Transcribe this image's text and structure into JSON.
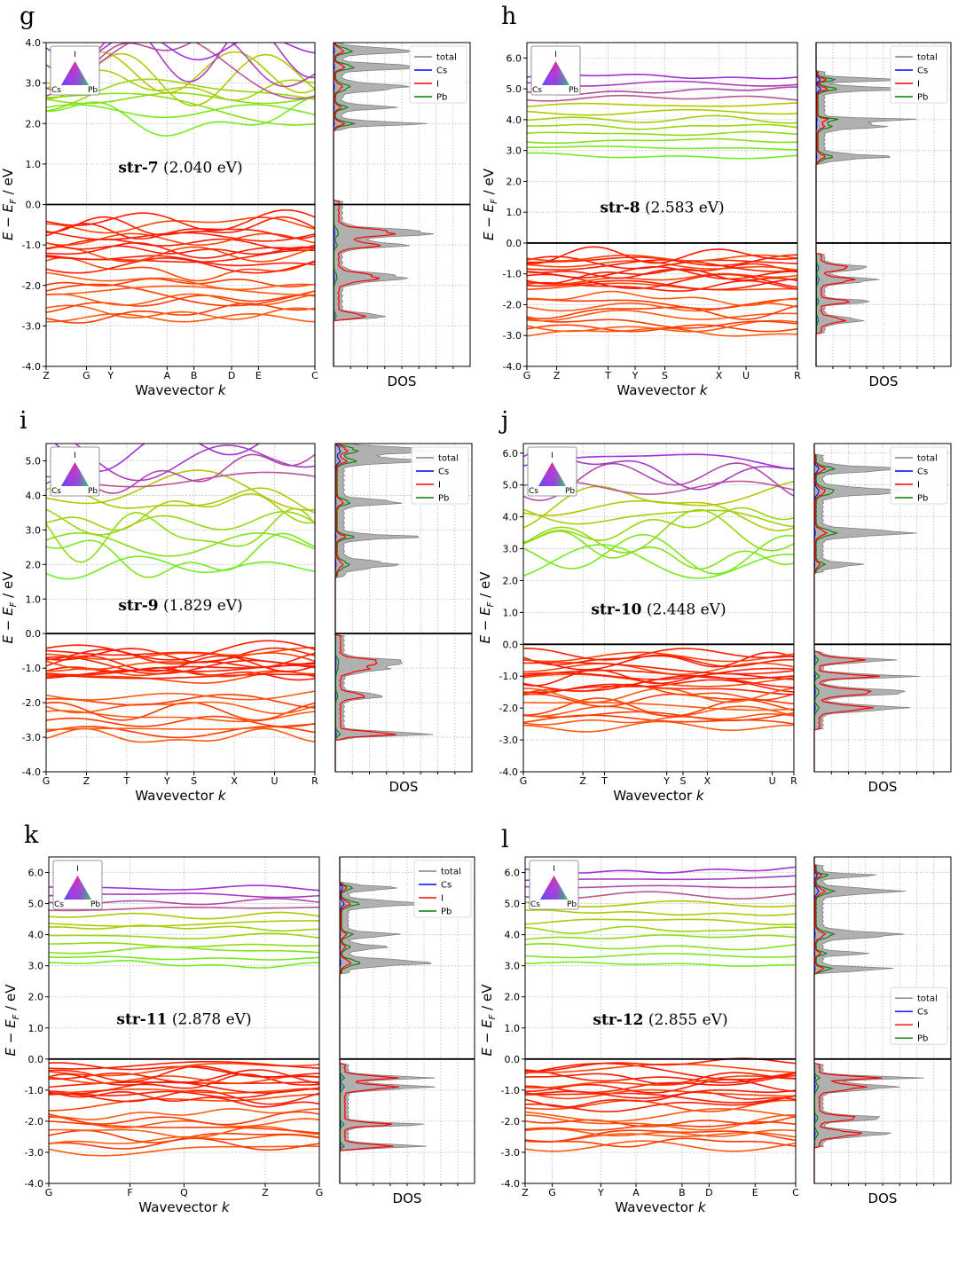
{
  "figure": {
    "colors": {
      "total": "#808080",
      "Cs": "#0000ff",
      "I": "#ff0000",
      "Pb": "#008000",
      "dos_fill": "#b0b0b0",
      "grid": "#b8b8b8"
    },
    "legend_labels": [
      "total",
      "Cs",
      "I",
      "Pb"
    ],
    "triangle_labels": {
      "top": "I",
      "left": "Cs",
      "right": "Pb"
    },
    "xlabel": "Wavevector k",
    "ylabel": "E − E_F / eV",
    "dos_label": "DOS"
  },
  "chart_data": [
    {
      "panel": "g",
      "type": "line",
      "structure": "str-7",
      "gap_text": "(2.040 eV)",
      "band_gap_eV": 2.04,
      "ylim": [
        -4.0,
        4.0
      ],
      "yticks": [
        -4.0,
        -3.0,
        -2.0,
        -1.0,
        0.0,
        1.0,
        2.0,
        3.0,
        4.0
      ],
      "kpoints": [
        {
          "label": "Z",
          "pos": 0
        },
        {
          "label": "G",
          "pos": 0.15
        },
        {
          "label": "Y",
          "pos": 0.24
        },
        {
          "label": "A",
          "pos": 0.45
        },
        {
          "label": "B",
          "pos": 0.55
        },
        {
          "label": "D",
          "pos": 0.69
        },
        {
          "label": "E",
          "pos": 0.79
        },
        {
          "label": "C",
          "pos": 1
        }
      ],
      "valence": {
        "top": 0.05,
        "bottom": -2.8,
        "upper_range": [
          -1.6,
          -0.4
        ],
        "lower_range": [
          -2.8,
          -1.9
        ]
      },
      "conduction": {
        "bottom": 1.9,
        "top": 4.0,
        "style": "dispersive"
      },
      "dos_peaks": [
        -2.75,
        -1.8,
        -1.0,
        -0.7,
        2.0,
        2.4,
        2.9,
        3.4,
        3.8
      ],
      "legend_position": "top-right"
    },
    {
      "panel": "h",
      "type": "line",
      "structure": "str-8",
      "gap_text": "(2.583 eV)",
      "band_gap_eV": 2.583,
      "ylim": [
        -4.0,
        6.5
      ],
      "yticks": [
        -4.0,
        -3.0,
        -2.0,
        -1.0,
        0.0,
        1.0,
        2.0,
        3.0,
        4.0,
        5.0,
        6.0
      ],
      "kpoints": [
        {
          "label": "G",
          "pos": 0
        },
        {
          "label": "Z",
          "pos": 0.11
        },
        {
          "label": "T",
          "pos": 0.3
        },
        {
          "label": "Y",
          "pos": 0.4
        },
        {
          "label": "S",
          "pos": 0.51
        },
        {
          "label": "X",
          "pos": 0.71
        },
        {
          "label": "U",
          "pos": 0.81
        },
        {
          "label": "R",
          "pos": 1
        }
      ],
      "valence": {
        "top": -0.4,
        "bottom": -2.9,
        "upper_range": [
          -1.5,
          -0.4
        ],
        "lower_range": [
          -2.9,
          -1.8
        ]
      },
      "conduction": {
        "bottom": 2.6,
        "top": 5.5,
        "style": "flat"
      },
      "dos_peaks": [
        -2.5,
        -1.9,
        -1.2,
        -0.8,
        2.8,
        3.8,
        4.0,
        5.0,
        5.3
      ],
      "legend_position": "top-right"
    },
    {
      "panel": "i",
      "type": "line",
      "structure": "str-9",
      "gap_text": "(1.829 eV)",
      "band_gap_eV": 1.829,
      "ylim": [
        -4.0,
        5.5
      ],
      "yticks": [
        -4.0,
        -3.0,
        -2.0,
        -1.0,
        0.0,
        1.0,
        2.0,
        3.0,
        4.0,
        5.0
      ],
      "kpoints": [
        {
          "label": "G",
          "pos": 0
        },
        {
          "label": "Z",
          "pos": 0.15
        },
        {
          "label": "T",
          "pos": 0.3
        },
        {
          "label": "Y",
          "pos": 0.45
        },
        {
          "label": "S",
          "pos": 0.55
        },
        {
          "label": "X",
          "pos": 0.7
        },
        {
          "label": "U",
          "pos": 0.85
        },
        {
          "label": "R",
          "pos": 1
        }
      ],
      "valence": {
        "top": -0.1,
        "bottom": -3.0,
        "upper_range": [
          -1.3,
          -0.5
        ],
        "lower_range": [
          -3.0,
          -1.8
        ]
      },
      "conduction": {
        "bottom": 1.7,
        "top": 5.5,
        "style": "dispersive"
      },
      "dos_peaks": [
        -2.9,
        -1.8,
        -1.0,
        -0.8,
        2.0,
        2.8,
        3.8,
        5.0,
        5.3
      ],
      "legend_position": "top-right"
    },
    {
      "panel": "j",
      "type": "line",
      "structure": "str-10",
      "gap_text": "(2.448 eV)",
      "band_gap_eV": 2.448,
      "ylim": [
        -4.0,
        6.3
      ],
      "yticks": [
        -4.0,
        -3.0,
        -2.0,
        -1.0,
        0.0,
        1.0,
        2.0,
        3.0,
        4.0,
        5.0,
        6.0
      ],
      "kpoints": [
        {
          "label": "G",
          "pos": 0
        },
        {
          "label": "Z",
          "pos": 0.22
        },
        {
          "label": "T",
          "pos": 0.3
        },
        {
          "label": "Y",
          "pos": 0.53
        },
        {
          "label": "S",
          "pos": 0.59
        },
        {
          "label": "X",
          "pos": 0.68
        },
        {
          "label": "U",
          "pos": 0.92
        },
        {
          "label": "R",
          "pos": 1
        }
      ],
      "valence": {
        "top": -0.3,
        "bottom": -2.6,
        "upper_range": [
          -1.5,
          -0.3
        ],
        "lower_range": [
          -2.6,
          -1.6
        ]
      },
      "conduction": {
        "bottom": 2.3,
        "top": 5.9,
        "style": "dispersive"
      },
      "dos_peaks": [
        -2.0,
        -1.5,
        -1.0,
        -0.5,
        2.5,
        3.5,
        4.8,
        5.5
      ],
      "legend_position": "top-right"
    },
    {
      "panel": "k",
      "type": "line",
      "structure": "str-11",
      "gap_text": "(2.878 eV)",
      "band_gap_eV": 2.878,
      "ylim": [
        -4.0,
        6.5
      ],
      "yticks": [
        -4.0,
        -3.0,
        -2.0,
        -1.0,
        0.0,
        1.0,
        2.0,
        3.0,
        4.0,
        5.0,
        6.0
      ],
      "kpoints": [
        {
          "label": "G",
          "pos": 0
        },
        {
          "label": "F",
          "pos": 0.3
        },
        {
          "label": "Q",
          "pos": 0.5
        },
        {
          "label": "Z",
          "pos": 0.8
        },
        {
          "label": "G",
          "pos": 1
        }
      ],
      "valence": {
        "top": -0.2,
        "bottom": -2.9,
        "upper_range": [
          -1.4,
          -0.2
        ],
        "lower_range": [
          -2.9,
          -1.8
        ]
      },
      "conduction": {
        "bottom": 2.8,
        "top": 5.6,
        "style": "flat"
      },
      "dos_peaks": [
        -2.8,
        -2.1,
        -0.9,
        -0.6,
        3.1,
        3.6,
        4.0,
        5.0,
        5.5
      ],
      "legend_position": "top-right"
    },
    {
      "panel": "l",
      "type": "line",
      "structure": "str-12",
      "gap_text": "(2.855 eV)",
      "band_gap_eV": 2.855,
      "ylim": [
        -4.0,
        6.5
      ],
      "yticks": [
        -4.0,
        -3.0,
        -2.0,
        -1.0,
        0.0,
        1.0,
        2.0,
        3.0,
        4.0,
        5.0,
        6.0
      ],
      "kpoints": [
        {
          "label": "Z",
          "pos": 0
        },
        {
          "label": "G",
          "pos": 0.1
        },
        {
          "label": "Y",
          "pos": 0.28
        },
        {
          "label": "A",
          "pos": 0.41
        },
        {
          "label": "B",
          "pos": 0.58
        },
        {
          "label": "D",
          "pos": 0.68
        },
        {
          "label": "E",
          "pos": 0.85
        },
        {
          "label": "C",
          "pos": 1
        }
      ],
      "valence": {
        "top": -0.2,
        "bottom": -2.8,
        "upper_range": [
          -1.5,
          -0.2
        ],
        "lower_range": [
          -2.8,
          -1.8
        ]
      },
      "conduction": {
        "bottom": 2.8,
        "top": 6.2,
        "style": "flat"
      },
      "dos_peaks": [
        -2.4,
        -1.9,
        -0.9,
        -0.6,
        2.9,
        3.4,
        4.0,
        5.4,
        5.9
      ],
      "legend_position": "middle-right"
    }
  ]
}
